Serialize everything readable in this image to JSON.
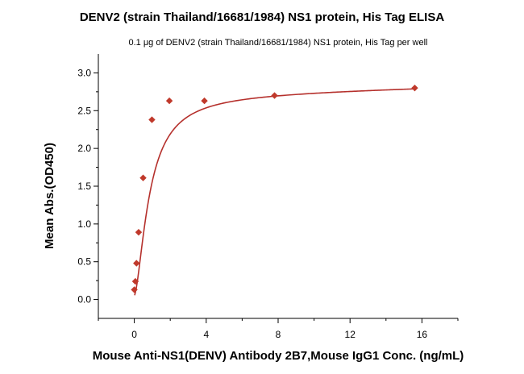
{
  "chart_data": {
    "type": "scatter",
    "title": "DENV2 (strain Thailand/16681/1984) NS1 protein, His Tag ELISA",
    "subtitle": "0.1 μg of DENV2 (strain Thailand/16681/1984) NS1 protein, His Tag per well",
    "xlabel": "Mouse Anti-NS1(DENV) Antibody 2B7,Mouse IgG1 Conc. (ng/mL)",
    "ylabel": "Mean Abs.(OD450)",
    "xlim": [
      -2,
      18
    ],
    "ylim": [
      -0.25,
      3.25
    ],
    "x_ticks": [
      "0",
      "4",
      "8",
      "12",
      "16"
    ],
    "y_ticks": [
      "0.0",
      "0.5",
      "1.0",
      "1.5",
      "2.0",
      "2.5",
      "3.0"
    ],
    "grid": false,
    "series": [
      {
        "x": [
          0.0,
          0.06,
          0.12,
          0.24,
          0.49,
          0.98,
          1.95,
          3.9,
          7.8,
          15.6
        ],
        "y": [
          0.13,
          0.24,
          0.48,
          0.89,
          1.61,
          2.38,
          2.63,
          2.63,
          2.7,
          2.8
        ],
        "color": "#c0392b",
        "marker": "diamond",
        "fit": "4PL"
      }
    ]
  }
}
